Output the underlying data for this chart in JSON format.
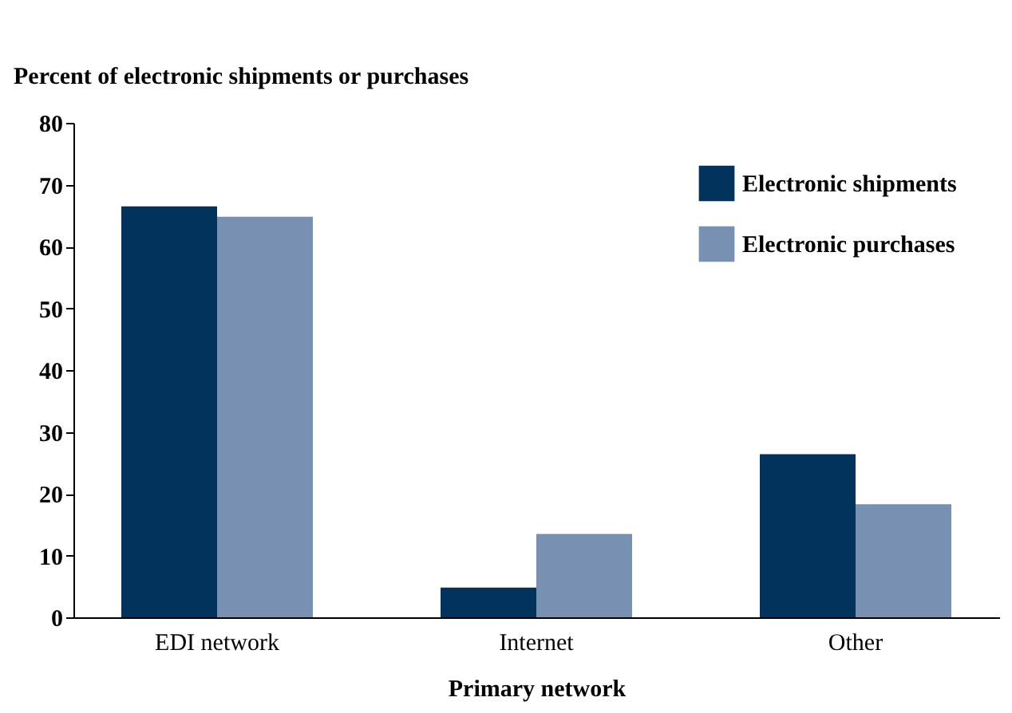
{
  "chart_data": {
    "type": "bar",
    "ylabel": "Percent of electronic shipments or purchases",
    "xlabel": "Primary network",
    "categories": [
      "EDI network",
      "Internet",
      "Other"
    ],
    "series": [
      {
        "name": "Electronic shipments",
        "color": "#01335c",
        "values": [
          66.5,
          4.8,
          26.4
        ]
      },
      {
        "name": "Electronic purchases",
        "color": "#7890b2",
        "values": [
          64.8,
          13.5,
          18.3
        ]
      }
    ],
    "ylim": [
      0,
      80
    ],
    "yticks": [
      0,
      10,
      20,
      30,
      40,
      50,
      60,
      70,
      80
    ],
    "grid": false,
    "legend": "top right"
  }
}
